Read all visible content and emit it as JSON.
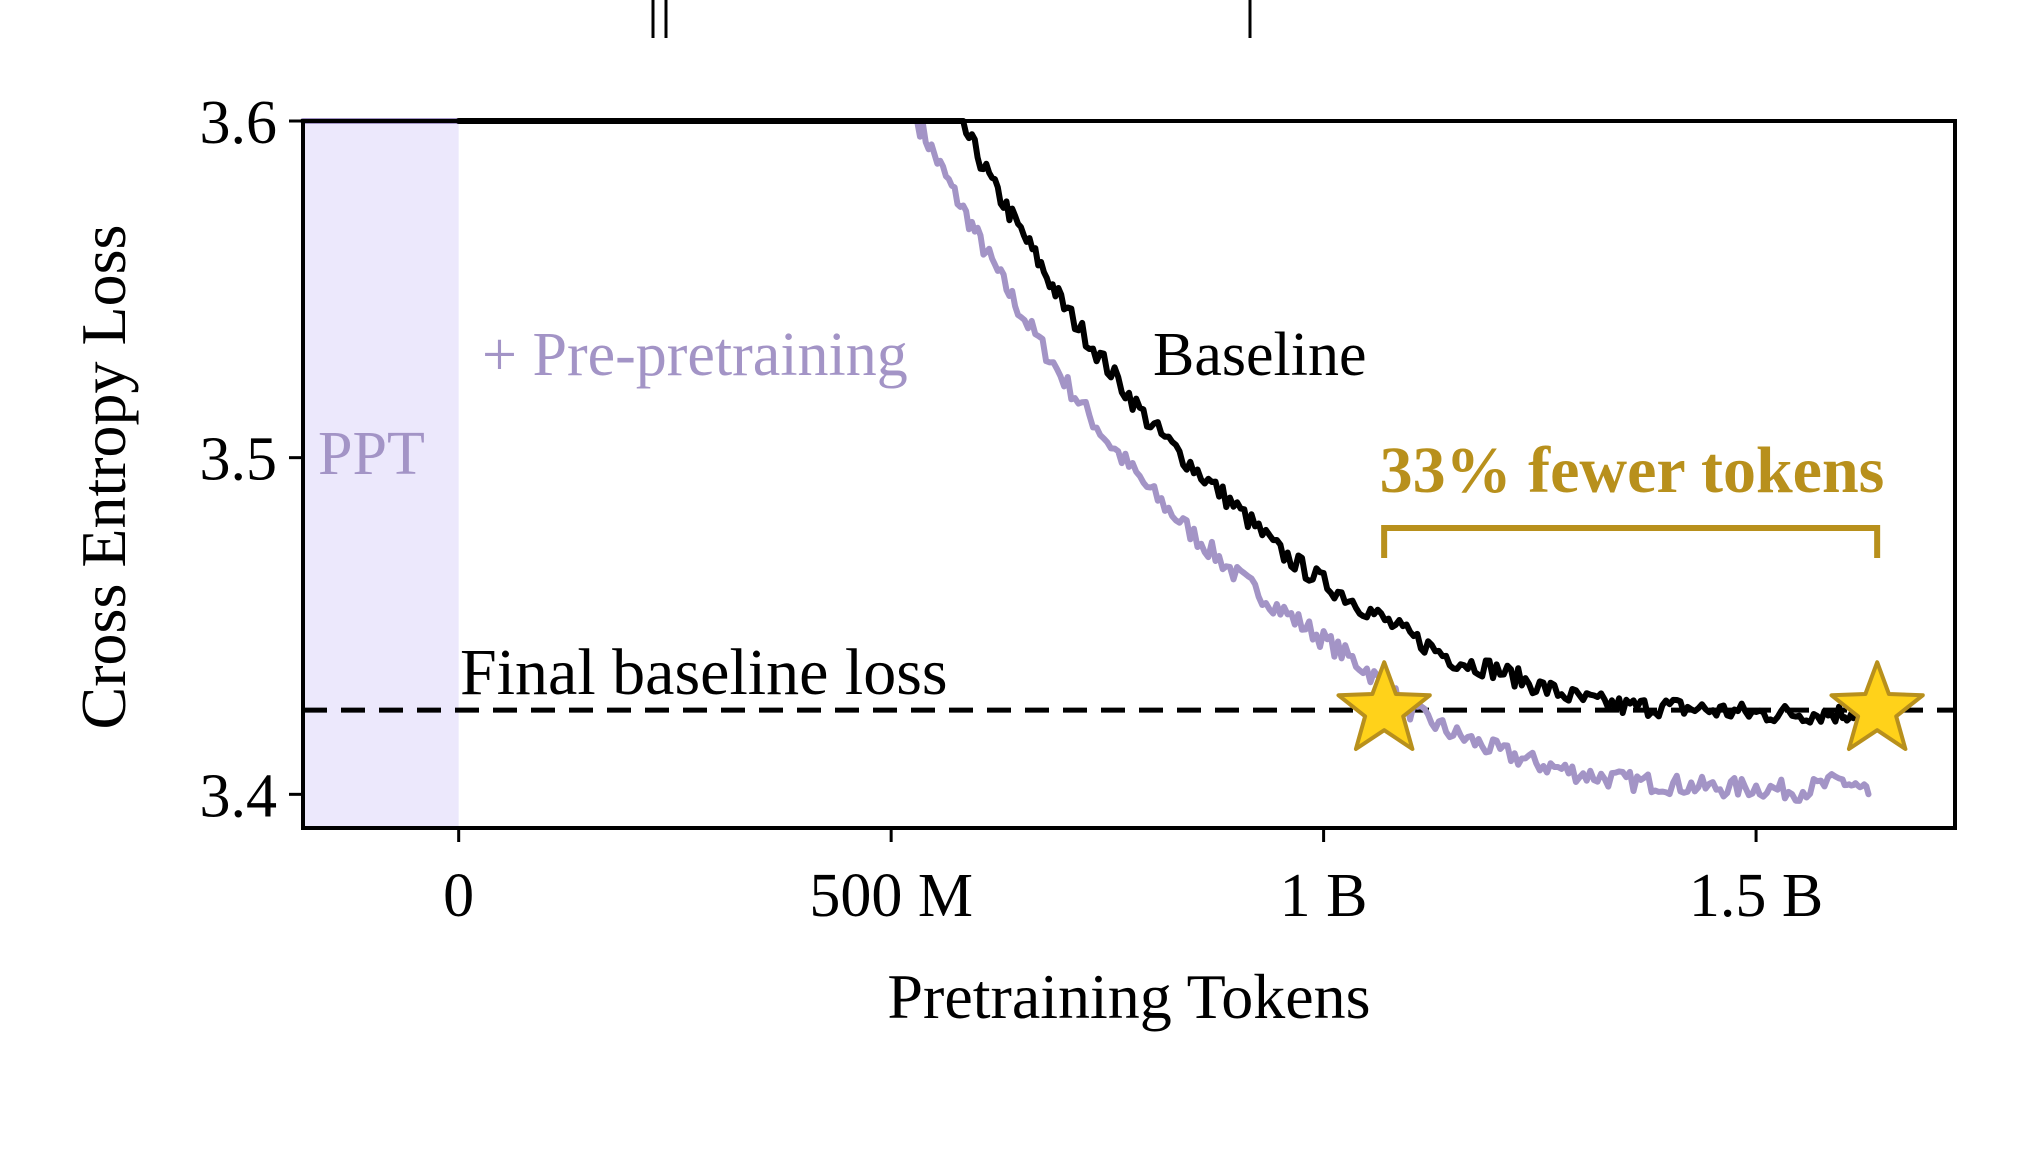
{
  "chart_data": {
    "type": "line",
    "xlabel": "Pretraining Tokens",
    "ylabel": "Cross Entropy Loss",
    "xlim": [
      -180000000,
      1730000000
    ],
    "ylim": [
      3.39,
      3.6
    ],
    "x_ticks": [
      {
        "value": 0,
        "label": "0"
      },
      {
        "value": 500000000,
        "label": "500 M"
      },
      {
        "value": 1000000000,
        "label": "1 B"
      },
      {
        "value": 1500000000,
        "label": "1.5 B"
      }
    ],
    "y_ticks": [
      {
        "value": 3.4,
        "label": "3.4"
      },
      {
        "value": 3.5,
        "label": "3.5"
      },
      {
        "value": 3.6,
        "label": "3.6"
      }
    ],
    "shaded_region": {
      "x": [
        -180000000,
        0
      ],
      "color": "#ece8fc",
      "label": "PPT"
    },
    "reference_line": {
      "y": 3.425,
      "label": "Final baseline loss",
      "style": "dashed"
    },
    "series": [
      {
        "name": "Baseline",
        "color": "#000000",
        "x": [
          0,
          300000000,
          580000000,
          620000000,
          660000000,
          700000000,
          750000000,
          800000000,
          850000000,
          900000000,
          950000000,
          1000000000,
          1050000000,
          1100000000,
          1150000000,
          1200000000,
          1250000000,
          1300000000,
          1350000000,
          1400000000,
          1450000000,
          1500000000,
          1550000000,
          1600000000,
          1630000000
        ],
        "y": [
          3.6,
          3.6,
          3.6,
          3.58,
          3.563,
          3.545,
          3.527,
          3.51,
          3.497,
          3.485,
          3.472,
          3.463,
          3.455,
          3.447,
          3.44,
          3.437,
          3.432,
          3.428,
          3.426,
          3.426,
          3.425,
          3.424,
          3.424,
          3.424,
          3.425
        ]
      },
      {
        "name": "+ Pre-pretraining",
        "color": "#a394c6",
        "x": [
          -180000000,
          0,
          300000000,
          530000000,
          570000000,
          610000000,
          650000000,
          700000000,
          750000000,
          800000000,
          850000000,
          900000000,
          950000000,
          1000000000,
          1050000000,
          1100000000,
          1150000000,
          1200000000,
          1250000000,
          1300000000,
          1350000000,
          1400000000,
          1450000000,
          1500000000,
          1550000000,
          1600000000,
          1630000000
        ],
        "y": [
          3.6,
          3.6,
          3.6,
          3.6,
          3.58,
          3.561,
          3.543,
          3.523,
          3.505,
          3.49,
          3.477,
          3.465,
          3.455,
          3.446,
          3.437,
          3.425,
          3.418,
          3.413,
          3.409,
          3.406,
          3.404,
          3.403,
          3.402,
          3.402,
          3.401,
          3.404,
          3.4
        ]
      }
    ],
    "markers": [
      {
        "x": 1070000000,
        "y": 3.425,
        "shape": "star",
        "color": "#ffd21a"
      },
      {
        "x": 1640000000,
        "y": 3.425,
        "shape": "star",
        "color": "#ffd21a"
      }
    ],
    "annotations": {
      "baseline_label": "Baseline",
      "ppt_curve_label": "+ Pre-pretraining",
      "ppt_region_label": "PPT",
      "final_loss_label": "Final baseline loss",
      "savings_label": "33% fewer tokens",
      "savings_bracket": {
        "x_start": 1070000000,
        "x_end": 1640000000
      },
      "savings_color": "#b8901c"
    },
    "grid": false,
    "legend": "none"
  }
}
